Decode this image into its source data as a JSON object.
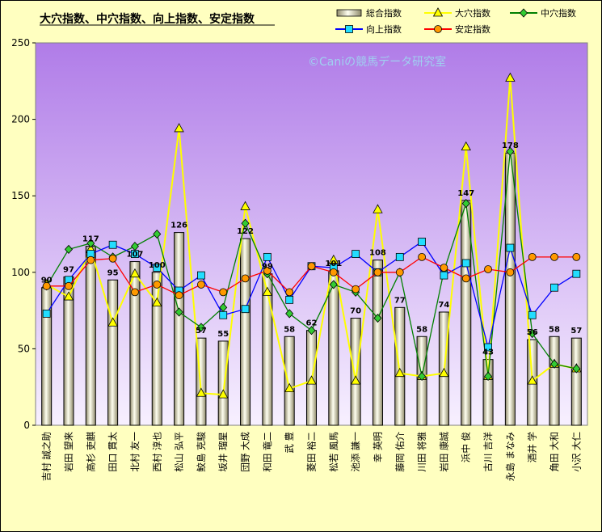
{
  "chart_data": {
    "type": "bar",
    "title": "大穴指数、中穴指数、向上指数、安定指数",
    "watermark": "©Caniの競馬データ研究室",
    "ylim": [
      0,
      250
    ],
    "yticks": [
      0,
      50,
      100,
      150,
      200,
      250
    ],
    "grid": false,
    "legend_position": "top-right",
    "categories": [
      "吉村 誠之助",
      "岩田 望来",
      "高杉 吏麒",
      "田口 貫太",
      "北村 友一",
      "西村 淳也",
      "松山 弘平",
      "鮫島 克駿",
      "坂井 瑠星",
      "団野 大成",
      "和田 竜二",
      "武 豊",
      "菱田 裕二",
      "松若 風馬",
      "池添 謙一",
      "幸 英明",
      "藤岡 佑介",
      "川田 将雅",
      "岩田 康誠",
      "浜中 俊",
      "古川 吉洋",
      "永島 まなみ",
      "酒井 学",
      "角田 大和",
      "小沢 大仁"
    ],
    "series": [
      {
        "name": "総合指数",
        "kind": "bar",
        "color": "#e8e4c0",
        "values": [
          90,
          97,
          117,
          95,
          107,
          100,
          126,
          57,
          55,
          122,
          99,
          58,
          62,
          101,
          70,
          108,
          77,
          58,
          74,
          147,
          43,
          178,
          56,
          58,
          57
        ]
      },
      {
        "name": "大穴指数",
        "kind": "line",
        "color": "#ffff00",
        "marker": "triangle",
        "values": [
          92,
          84,
          115,
          67,
          99,
          80,
          194,
          21,
          20,
          143,
          87,
          24,
          29,
          108,
          29,
          141,
          34,
          32,
          34,
          182,
          32,
          227,
          29,
          40,
          37
        ]
      },
      {
        "name": "中穴指数",
        "kind": "line",
        "color": "#008000",
        "marker": "diamond",
        "values": [
          91,
          115,
          119,
          110,
          117,
          125,
          74,
          64,
          77,
          132,
          99,
          73,
          62,
          92,
          87,
          70,
          100,
          32,
          101,
          145,
          32,
          179,
          60,
          40,
          37
        ]
      },
      {
        "name": "向上指数",
        "kind": "line",
        "color": "#0000ff",
        "marker": "square",
        "values": [
          73,
          95,
          112,
          118,
          112,
          103,
          88,
          98,
          72,
          76,
          110,
          82,
          104,
          103,
          112,
          100,
          110,
          120,
          98,
          106,
          51,
          116,
          72,
          90,
          99
        ]
      },
      {
        "name": "安定指数",
        "kind": "line",
        "color": "#ff0000",
        "marker": "circle",
        "values": [
          91,
          91,
          108,
          109,
          87,
          92,
          85,
          92,
          87,
          96,
          101,
          87,
          104,
          100,
          89,
          100,
          100,
          110,
          103,
          96,
          102,
          100,
          110,
          110,
          110
        ]
      }
    ]
  }
}
